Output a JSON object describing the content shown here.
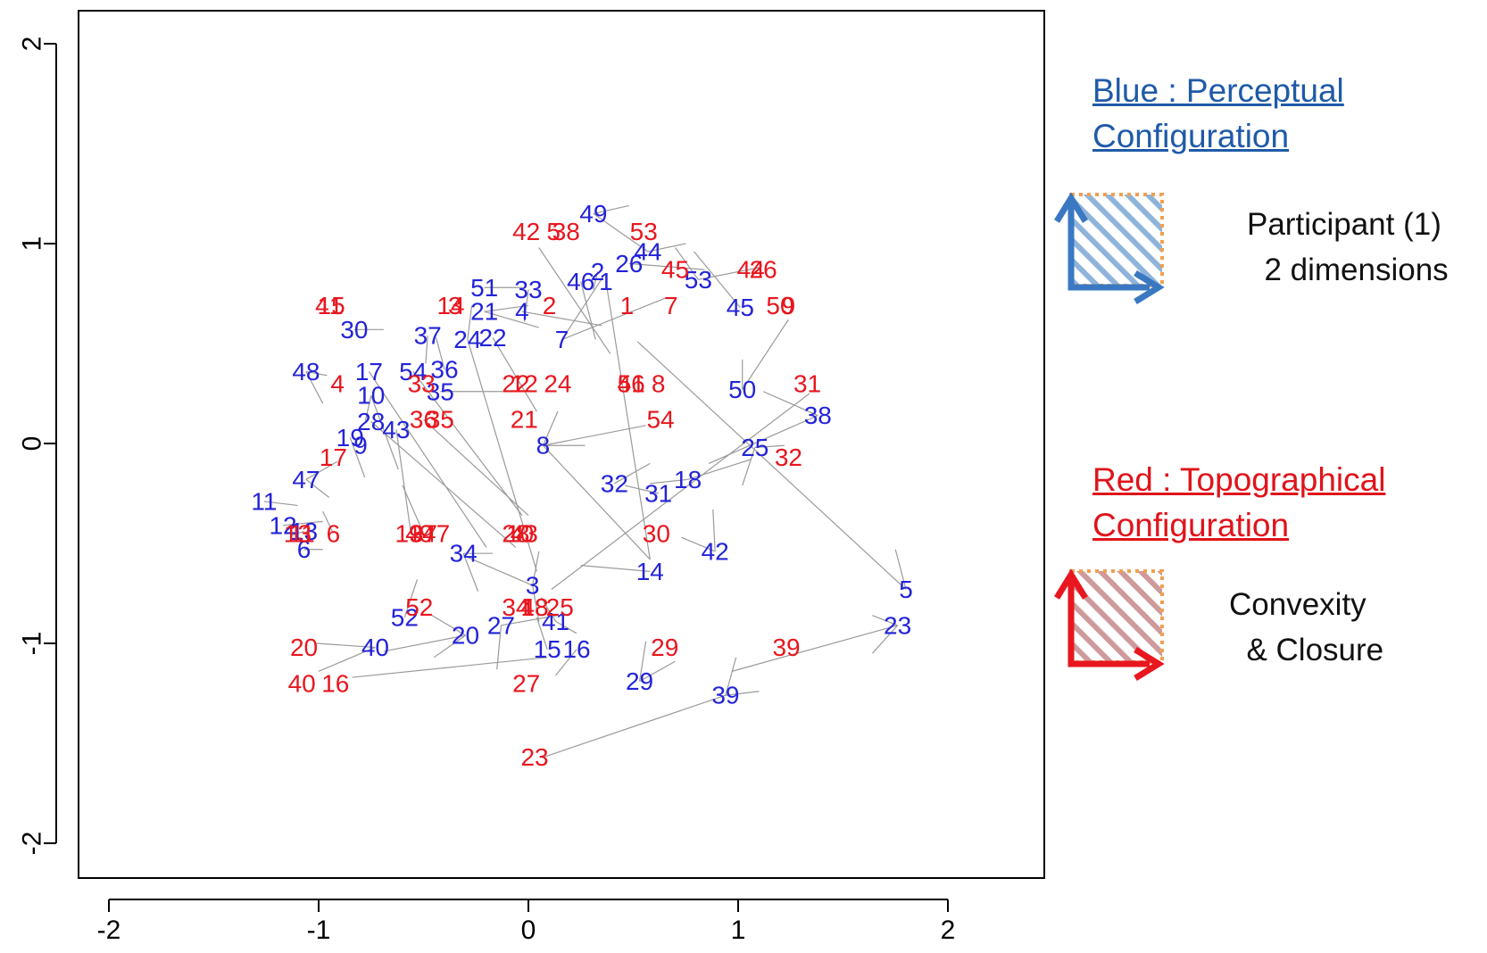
{
  "chart_data": {
    "type": "scatter",
    "title": "",
    "xlabel": "",
    "ylabel": "",
    "xlim": [
      -2.15,
      2.15
    ],
    "ylim": [
      -2.15,
      2.15
    ],
    "x_ticks": [
      "-2",
      "-1",
      "0",
      "1",
      "2"
    ],
    "y_ticks": [
      "-2",
      "-1",
      "0",
      "1",
      "2"
    ],
    "grid": false,
    "legend_placement": "right",
    "series": [
      {
        "name": "Blue : Perceptual Configuration",
        "color": "#2323d8",
        "points": [
          {
            "label": "1",
            "x": 0.37,
            "y": 0.81
          },
          {
            "label": "2",
            "x": 0.33,
            "y": 0.86
          },
          {
            "label": "3",
            "x": 0.02,
            "y": -0.71
          },
          {
            "label": "4",
            "x": -0.03,
            "y": 0.66
          },
          {
            "label": "5",
            "x": 1.8,
            "y": -0.73
          },
          {
            "label": "6",
            "x": -1.07,
            "y": -0.53
          },
          {
            "label": "7",
            "x": 0.16,
            "y": 0.52
          },
          {
            "label": "8",
            "x": 0.07,
            "y": -0.01
          },
          {
            "label": "9",
            "x": -0.8,
            "y": -0.01
          },
          {
            "label": "10",
            "x": -0.75,
            "y": 0.24
          },
          {
            "label": "11",
            "x": -1.26,
            "y": -0.29
          },
          {
            "label": "12",
            "x": -1.17,
            "y": -0.41
          },
          {
            "label": "13",
            "x": -1.07,
            "y": -0.44
          },
          {
            "label": "14",
            "x": 0.58,
            "y": -0.64
          },
          {
            "label": "15",
            "x": 0.09,
            "y": -1.03
          },
          {
            "label": "16",
            "x": 0.23,
            "y": -1.03
          },
          {
            "label": "17",
            "x": -0.76,
            "y": 0.36
          },
          {
            "label": "18",
            "x": 0.76,
            "y": -0.18
          },
          {
            "label": "19",
            "x": -0.85,
            "y": 0.03
          },
          {
            "label": "20",
            "x": -0.3,
            "y": -0.96
          },
          {
            "label": "21",
            "x": -0.21,
            "y": 0.66
          },
          {
            "label": "22",
            "x": -0.17,
            "y": 0.53
          },
          {
            "label": "23",
            "x": 1.76,
            "y": -0.91
          },
          {
            "label": "24",
            "x": -0.29,
            "y": 0.52
          },
          {
            "label": "25",
            "x": 1.08,
            "y": -0.02
          },
          {
            "label": "26",
            "x": 0.48,
            "y": 0.9
          },
          {
            "label": "27",
            "x": -0.13,
            "y": -0.91
          },
          {
            "label": "28",
            "x": -0.75,
            "y": 0.11
          },
          {
            "label": "29",
            "x": 0.53,
            "y": -1.19
          },
          {
            "label": "30",
            "x": -0.83,
            "y": 0.57
          },
          {
            "label": "31",
            "x": 0.62,
            "y": -0.25
          },
          {
            "label": "32",
            "x": 0.41,
            "y": -0.2
          },
          {
            "label": "33",
            "x": 0.0,
            "y": 0.77
          },
          {
            "label": "34",
            "x": -0.31,
            "y": -0.55
          },
          {
            "label": "35",
            "x": -0.42,
            "y": 0.26
          },
          {
            "label": "36",
            "x": -0.4,
            "y": 0.37
          },
          {
            "label": "37",
            "x": -0.48,
            "y": 0.54
          },
          {
            "label": "38",
            "x": 1.38,
            "y": 0.14
          },
          {
            "label": "39",
            "x": 0.94,
            "y": -1.26
          },
          {
            "label": "40",
            "x": -0.73,
            "y": -1.02
          },
          {
            "label": "41",
            "x": 0.13,
            "y": -0.89
          },
          {
            "label": "42",
            "x": 0.89,
            "y": -0.54
          },
          {
            "label": "43",
            "x": -0.63,
            "y": 0.07
          },
          {
            "label": "44",
            "x": 0.57,
            "y": 0.96
          },
          {
            "label": "45",
            "x": 1.01,
            "y": 0.68
          },
          {
            "label": "46",
            "x": 0.25,
            "y": 0.81
          },
          {
            "label": "47",
            "x": -1.06,
            "y": -0.18
          },
          {
            "label": "48",
            "x": -1.06,
            "y": 0.36
          },
          {
            "label": "49",
            "x": 0.31,
            "y": 1.15
          },
          {
            "label": "50",
            "x": 1.02,
            "y": 0.27
          },
          {
            "label": "51",
            "x": -0.21,
            "y": 0.78
          },
          {
            "label": "52",
            "x": -0.59,
            "y": -0.87
          },
          {
            "label": "53",
            "x": 0.81,
            "y": 0.82
          },
          {
            "label": "54",
            "x": -0.55,
            "y": 0.36
          }
        ]
      },
      {
        "name": "Red : Topographical Configuration",
        "color": "#e8161e",
        "points": [
          {
            "label": "1",
            "x": 0.47,
            "y": 0.69
          },
          {
            "label": "2",
            "x": 0.1,
            "y": 0.69
          },
          {
            "label": "3",
            "x": -0.35,
            "y": 0.69
          },
          {
            "label": "4",
            "x": -0.91,
            "y": 0.3
          },
          {
            "label": "5",
            "x": 0.12,
            "y": 1.06
          },
          {
            "label": "6",
            "x": -0.93,
            "y": -0.45
          },
          {
            "label": "7",
            "x": 0.68,
            "y": 0.69
          },
          {
            "label": "8",
            "x": 0.62,
            "y": 0.3
          },
          {
            "label": "9",
            "x": 1.24,
            "y": 0.69
          },
          {
            "label": "10",
            "x": -0.04,
            "y": -0.45
          },
          {
            "label": "11",
            "x": -1.08,
            "y": -0.45
          },
          {
            "label": "12",
            "x": -0.02,
            "y": 0.3
          },
          {
            "label": "13",
            "x": -1.1,
            "y": -0.45
          },
          {
            "label": "14",
            "x": -0.37,
            "y": 0.69
          },
          {
            "label": "15",
            "x": -0.94,
            "y": 0.69
          },
          {
            "label": "16",
            "x": -0.92,
            "y": -1.2
          },
          {
            "label": "17",
            "x": -0.93,
            "y": -0.07
          },
          {
            "label": "18",
            "x": 0.03,
            "y": -0.82
          },
          {
            "label": "19",
            "x": -0.57,
            "y": -0.45
          },
          {
            "label": "20",
            "x": -1.07,
            "y": -1.02
          },
          {
            "label": "21",
            "x": -0.02,
            "y": 0.12
          },
          {
            "label": "22",
            "x": -0.06,
            "y": 0.3
          },
          {
            "label": "23",
            "x": 0.03,
            "y": -1.57
          },
          {
            "label": "24",
            "x": 0.14,
            "y": 0.3
          },
          {
            "label": "25",
            "x": 0.15,
            "y": -0.82
          },
          {
            "label": "26",
            "x": 1.12,
            "y": 0.87
          },
          {
            "label": "27",
            "x": -0.01,
            "y": -1.2
          },
          {
            "label": "28",
            "x": -0.06,
            "y": -0.45
          },
          {
            "label": "29",
            "x": 0.65,
            "y": -1.02
          },
          {
            "label": "30",
            "x": 0.61,
            "y": -0.45
          },
          {
            "label": "31",
            "x": 1.33,
            "y": 0.3
          },
          {
            "label": "32",
            "x": 1.24,
            "y": -0.07
          },
          {
            "label": "33",
            "x": -0.51,
            "y": 0.3
          },
          {
            "label": "34",
            "x": -0.06,
            "y": -0.82
          },
          {
            "label": "35",
            "x": -0.42,
            "y": 0.12
          },
          {
            "label": "36",
            "x": -0.5,
            "y": 0.12
          },
          {
            "label": "37",
            "x": -0.5,
            "y": -0.45
          },
          {
            "label": "38",
            "x": 0.18,
            "y": 1.06
          },
          {
            "label": "39",
            "x": 1.23,
            "y": -1.02
          },
          {
            "label": "40",
            "x": -1.08,
            "y": -1.2
          },
          {
            "label": "41",
            "x": -0.95,
            "y": 0.69
          },
          {
            "label": "42",
            "x": -0.01,
            "y": 1.06
          },
          {
            "label": "43",
            "x": -0.02,
            "y": -0.45
          },
          {
            "label": "44",
            "x": 1.06,
            "y": 0.87
          },
          {
            "label": "45",
            "x": 0.7,
            "y": 0.87
          },
          {
            "label": "46",
            "x": 0.49,
            "y": 0.3
          },
          {
            "label": "47",
            "x": -0.44,
            "y": -0.45
          },
          {
            "label": "48",
            "x": 0.03,
            "y": -0.82
          },
          {
            "label": "49",
            "x": -0.52,
            "y": -0.45
          },
          {
            "label": "50",
            "x": 1.2,
            "y": 0.69
          },
          {
            "label": "51",
            "x": 0.49,
            "y": 0.3
          },
          {
            "label": "52",
            "x": -0.52,
            "y": -0.82
          },
          {
            "label": "53",
            "x": 0.55,
            "y": 1.06
          },
          {
            "label": "54",
            "x": 0.63,
            "y": 0.12
          }
        ]
      }
    ],
    "connectors": [
      [
        -1.06,
        0.36,
        -0.96,
        0.34
      ],
      [
        -1.06,
        0.36,
        -0.98,
        0.2
      ],
      [
        -1.06,
        -0.18,
        -0.95,
        -0.27
      ],
      [
        -1.06,
        -0.18,
        -0.91,
        -0.09
      ],
      [
        -1.26,
        -0.29,
        -1.1,
        -0.31
      ],
      [
        -1.17,
        -0.41,
        -0.98,
        -0.39
      ],
      [
        -1.07,
        -0.53,
        -0.98,
        -0.53
      ],
      [
        -1.07,
        -0.44,
        -1.13,
        -0.46
      ],
      [
        -0.83,
        0.57,
        -0.69,
        0.57
      ],
      [
        -0.75,
        0.24,
        -0.78,
        0.1
      ],
      [
        -0.75,
        0.24,
        -0.62,
        -0.13
      ],
      [
        -0.76,
        0.36,
        -0.2,
        -0.52
      ],
      [
        -0.85,
        0.03,
        -0.78,
        -0.17
      ],
      [
        -0.75,
        0.11,
        -0.06,
        -0.52
      ],
      [
        -0.63,
        0.07,
        -0.56,
        -0.45
      ],
      [
        -0.55,
        0.36,
        -0.03,
        -0.36
      ],
      [
        -0.48,
        0.54,
        -0.49,
        0.4
      ],
      [
        -0.42,
        0.26,
        -0.05,
        0.26
      ],
      [
        -0.4,
        0.37,
        -0.44,
        0.53
      ],
      [
        -0.5,
        0.12,
        0.0,
        -0.36
      ],
      [
        -0.29,
        0.52,
        -0.27,
        0.69
      ],
      [
        -0.21,
        0.66,
        0.0,
        0.69
      ],
      [
        -0.21,
        0.78,
        -0.03,
        0.78
      ],
      [
        -0.21,
        0.66,
        0.05,
        0.58
      ],
      [
        -0.17,
        0.53,
        0.04,
        0.16
      ],
      [
        -0.29,
        0.52,
        0.04,
        -0.64
      ],
      [
        0.0,
        0.77,
        -0.02,
        0.61
      ],
      [
        -0.03,
        0.66,
        0.35,
        0.59
      ],
      [
        0.33,
        0.86,
        0.31,
        0.77
      ],
      [
        0.37,
        0.81,
        0.58,
        -0.58
      ],
      [
        0.25,
        0.81,
        0.32,
        0.52
      ],
      [
        0.16,
        0.52,
        0.66,
        0.73
      ],
      [
        0.16,
        0.52,
        0.36,
        0.84
      ],
      [
        0.05,
        0.98,
        0.39,
        0.45
      ],
      [
        0.31,
        1.15,
        0.48,
        1.19
      ],
      [
        0.31,
        1.15,
        0.57,
        0.96
      ],
      [
        0.48,
        0.9,
        0.84,
        0.87
      ],
      [
        0.57,
        0.96,
        0.75,
        1.0
      ],
      [
        0.81,
        0.82,
        0.7,
        0.98
      ],
      [
        0.81,
        0.82,
        1.1,
        0.88
      ],
      [
        1.01,
        0.68,
        0.79,
        0.96
      ],
      [
        1.02,
        0.27,
        1.02,
        0.42
      ],
      [
        1.02,
        0.27,
        1.24,
        0.62
      ],
      [
        1.38,
        0.14,
        1.12,
        0.26
      ],
      [
        1.38,
        0.14,
        0.86,
        -0.1
      ],
      [
        1.08,
        -0.02,
        1.22,
        -0.01
      ],
      [
        1.08,
        -0.02,
        1.02,
        -0.21
      ],
      [
        0.76,
        -0.18,
        0.58,
        -0.2
      ],
      [
        0.76,
        -0.18,
        1.06,
        -0.08
      ],
      [
        0.62,
        -0.25,
        0.46,
        -0.21
      ],
      [
        0.41,
        -0.2,
        0.58,
        -0.1
      ],
      [
        0.07,
        -0.01,
        0.27,
        -0.01
      ],
      [
        0.07,
        -0.01,
        0.14,
        0.16
      ],
      [
        0.07,
        -0.01,
        0.56,
        0.09
      ],
      [
        0.07,
        -0.01,
        0.58,
        -0.58
      ],
      [
        0.58,
        -0.64,
        0.25,
        -0.61
      ],
      [
        0.89,
        -0.54,
        0.88,
        -0.33
      ],
      [
        0.89,
        -0.54,
        0.73,
        -0.47
      ],
      [
        1.8,
        -0.73,
        1.75,
        -0.53
      ],
      [
        1.8,
        -0.73,
        0.52,
        0.51
      ],
      [
        1.76,
        -0.91,
        1.64,
        -0.86
      ],
      [
        1.76,
        -0.91,
        1.64,
        -1.05
      ],
      [
        1.76,
        -0.91,
        0.97,
        -1.14
      ],
      [
        0.94,
        -1.26,
        1.1,
        -1.24
      ],
      [
        0.94,
        -1.26,
        0.99,
        -1.07
      ],
      [
        0.94,
        -1.26,
        0.07,
        -1.57
      ],
      [
        0.53,
        -1.19,
        0.56,
        -0.99
      ],
      [
        0.53,
        -1.19,
        0.7,
        -1.09
      ],
      [
        0.13,
        -0.89,
        0.23,
        -0.95
      ],
      [
        0.13,
        -0.89,
        0.06,
        -0.77
      ],
      [
        0.23,
        -1.03,
        0.13,
        -1.16
      ],
      [
        0.09,
        -1.03,
        0.04,
        -0.87
      ],
      [
        0.02,
        -0.71,
        0.05,
        -0.54
      ],
      [
        0.02,
        -0.71,
        0.05,
        -0.89
      ],
      [
        0.02,
        -0.71,
        -0.31,
        -0.56
      ],
      [
        0.11,
        -0.73,
        1.34,
        0.25
      ],
      [
        -0.13,
        -0.91,
        -0.15,
        -1.13
      ],
      [
        -0.13,
        -0.91,
        0.14,
        -0.86
      ],
      [
        -0.3,
        -0.96,
        -0.46,
        -0.86
      ],
      [
        -0.3,
        -0.96,
        -0.45,
        -1.07
      ],
      [
        -0.3,
        -0.96,
        -0.69,
        -1.04
      ],
      [
        -0.59,
        -0.87,
        -0.53,
        -0.68
      ],
      [
        -0.73,
        -1.02,
        -1.01,
        -1.0
      ],
      [
        -0.73,
        -1.02,
        -1.0,
        -1.14
      ],
      [
        -0.84,
        -1.17,
        0.09,
        -1.07
      ],
      [
        -0.31,
        -0.55,
        -0.17,
        -0.55
      ],
      [
        -0.31,
        -0.55,
        -0.24,
        -0.74
      ],
      [
        -0.5,
        -0.45,
        -0.6,
        -0.21
      ],
      [
        -0.93,
        -0.45,
        -0.98,
        -0.34
      ]
    ]
  },
  "legend": {
    "blue": {
      "heading_line1": "Blue : Perceptual",
      "heading_line2": "Configuration",
      "text_line1": "Participant (1)",
      "text_line2": "  2 dimensions",
      "color": "#1f5aa8"
    },
    "red": {
      "heading_line1": "Red : Topographical",
      "heading_line2": "Configuration",
      "text_line1": "Convexity",
      "text_line2": "  & Closure",
      "color": "#e0131a"
    }
  }
}
